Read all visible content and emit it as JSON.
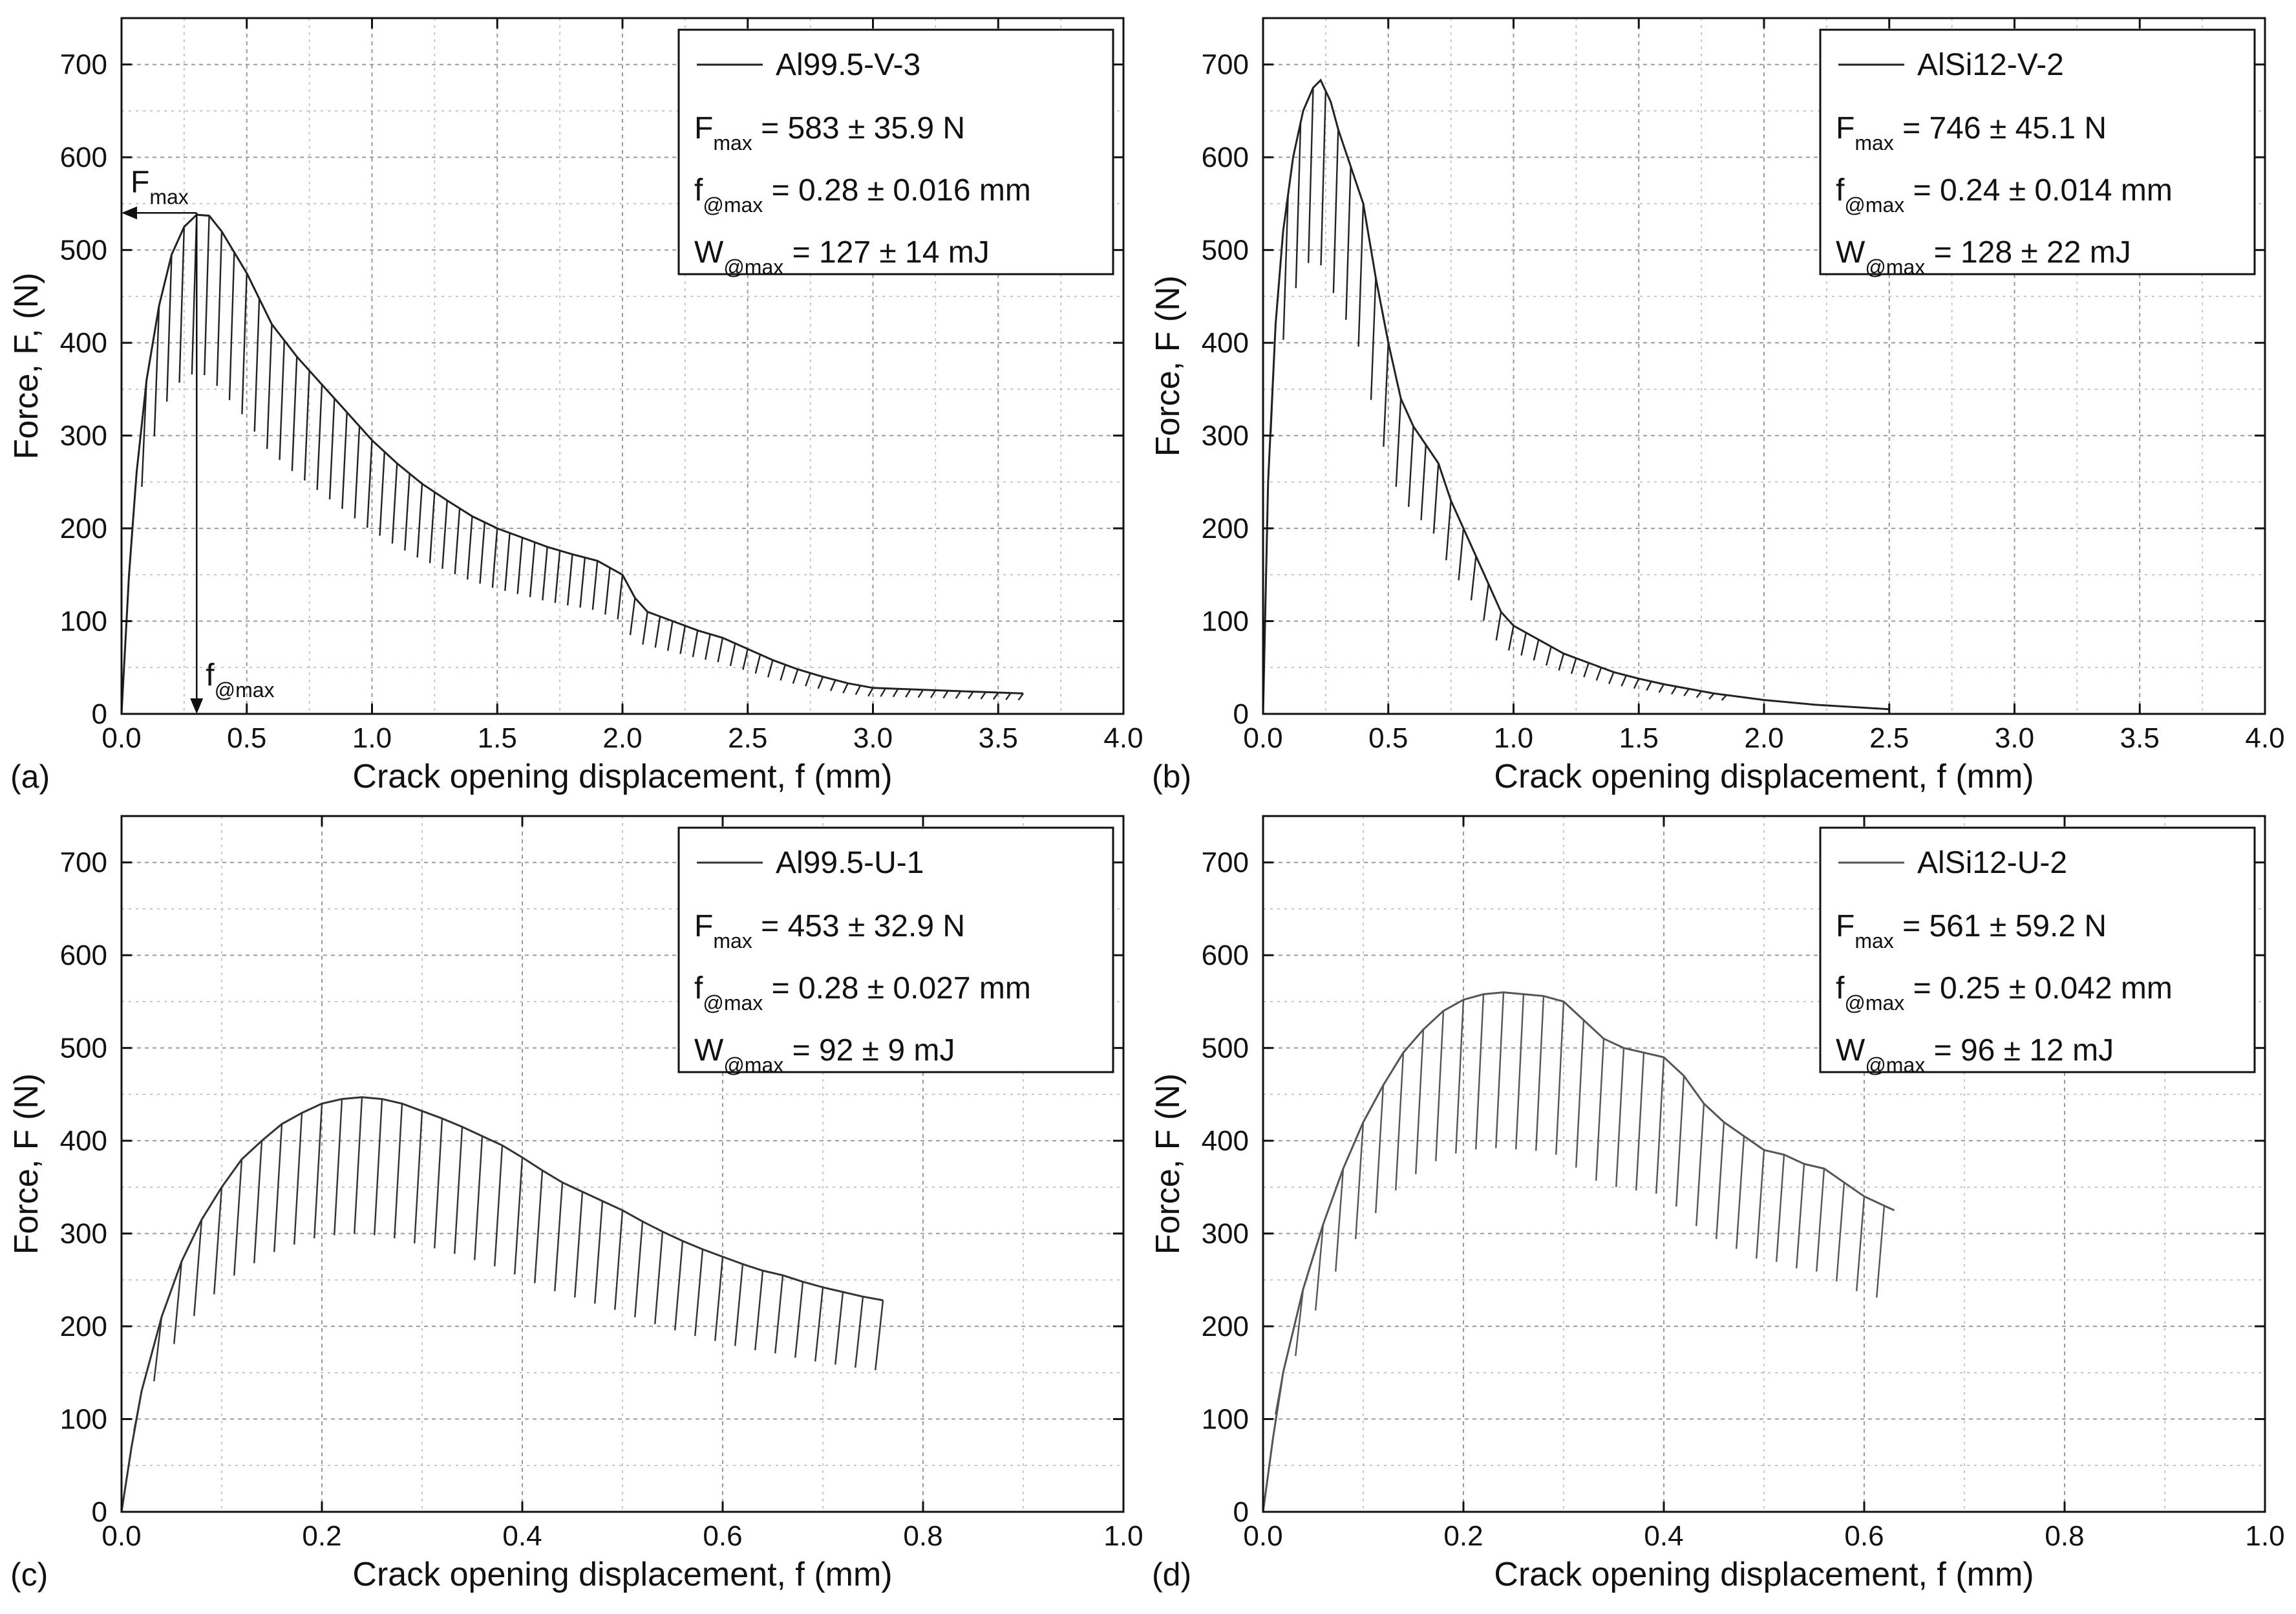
{
  "figure": {
    "panel_count": 4
  },
  "chart_data": [
    {
      "panel_label": "(a)",
      "type": "line",
      "xlabel": "Crack opening displacement, f (mm)",
      "ylabel": "Force, F, (N)",
      "xlim": [
        0,
        4.0
      ],
      "ylim": [
        0,
        750
      ],
      "xticks": [
        "0.0",
        "0.5",
        "1.0",
        "1.5",
        "2.0",
        "2.5",
        "3.0",
        "3.5",
        "4.0"
      ],
      "xtick_values": [
        0,
        0.5,
        1,
        1.5,
        2,
        2.5,
        3,
        3.5,
        4
      ],
      "yticks": [
        "0",
        "100",
        "200",
        "300",
        "400",
        "500",
        "600",
        "700"
      ],
      "ytick_values": [
        0,
        100,
        200,
        300,
        400,
        500,
        600,
        700
      ],
      "grid": true,
      "legend": {
        "location": "top-right",
        "series_name": "Al99.5-V-3",
        "rows": [
          {
            "main": "F",
            "sub": "max",
            "rest": " = 583 ± 35.9 N"
          },
          {
            "main": "f",
            "sub": "@max",
            "rest": " = 0.28 ± 0.016 mm"
          },
          {
            "main": "W",
            "sub": "@max",
            "rest": " = 127 ± 14 mJ"
          }
        ]
      },
      "annotations": {
        "peak_arrow": {
          "main": "F",
          "sub": "max"
        },
        "disp_arrow": {
          "main": "f",
          "sub": "@max"
        },
        "peak_point": [
          0.3,
          540
        ]
      },
      "series": [
        {
          "name": "Al99.5-V-3",
          "color": "#222222",
          "envelope": {
            "x": [
              0,
              0.03,
              0.06,
              0.1,
              0.15,
              0.2,
              0.25,
              0.3,
              0.35,
              0.4,
              0.5,
              0.6,
              0.7,
              0.8,
              0.9,
              1.0,
              1.1,
              1.2,
              1.3,
              1.4,
              1.5,
              1.6,
              1.7,
              1.8,
              1.9,
              2.0,
              2.05,
              2.1,
              2.2,
              2.3,
              2.4,
              2.5,
              2.6,
              2.7,
              2.8,
              2.9,
              3.0,
              3.2,
              3.4,
              3.6
            ],
            "y": [
              0,
              150,
              260,
              360,
              440,
              495,
              525,
              538,
              537,
              520,
              475,
              420,
              385,
              355,
              325,
              295,
              270,
              248,
              230,
              213,
              200,
              190,
              180,
              172,
              165,
              150,
              125,
              110,
              100,
              90,
              82,
              70,
              58,
              48,
              40,
              33,
              28,
              26,
              24,
              22
            ]
          },
          "unloading_step": 0.05,
          "unloading_depth": 0.32
        }
      ]
    },
    {
      "panel_label": "(b)",
      "type": "line",
      "xlabel": "Crack opening displacement, f (mm)",
      "ylabel": "Force, F (N)",
      "xlim": [
        0,
        4.0
      ],
      "ylim": [
        0,
        750
      ],
      "xticks": [
        "0.0",
        "0.5",
        "1.0",
        "1.5",
        "2.0",
        "2.5",
        "3.0",
        "3.5",
        "4.0"
      ],
      "xtick_values": [
        0,
        0.5,
        1,
        1.5,
        2,
        2.5,
        3,
        3.5,
        4
      ],
      "yticks": [
        "0",
        "100",
        "200",
        "300",
        "400",
        "500",
        "600",
        "700"
      ],
      "ytick_values": [
        0,
        100,
        200,
        300,
        400,
        500,
        600,
        700
      ],
      "grid": true,
      "legend": {
        "location": "top-right",
        "series_name": "AlSi12-V-2",
        "rows": [
          {
            "main": "F",
            "sub": "max",
            "rest": " = 746 ± 45.1 N"
          },
          {
            "main": "f",
            "sub": "@max",
            "rest": " = 0.24 ± 0.014 mm"
          },
          {
            "main": "W",
            "sub": "@max",
            "rest": " = 128 ± 22 mJ"
          }
        ]
      },
      "series": [
        {
          "name": "AlSi12-V-2",
          "color": "#222222",
          "envelope": {
            "x": [
              0,
              0.02,
              0.05,
              0.08,
              0.12,
              0.16,
              0.2,
              0.23,
              0.27,
              0.3,
              0.35,
              0.4,
              0.45,
              0.5,
              0.55,
              0.6,
              0.65,
              0.7,
              0.75,
              0.8,
              0.85,
              0.9,
              0.95,
              1.0,
              1.1,
              1.2,
              1.3,
              1.4,
              1.5,
              1.6,
              1.8,
              2.0,
              2.2,
              2.5
            ],
            "y": [
              0,
              250,
              420,
              520,
              600,
              650,
              675,
              683,
              660,
              630,
              590,
              550,
              470,
              400,
              340,
              310,
              290,
              270,
              230,
              200,
              170,
              140,
              110,
              95,
              80,
              65,
              55,
              45,
              38,
              32,
              22,
              15,
              10,
              5
            ]
          },
          "unloading_step": 0.05,
          "unloading_depth": 0.28
        }
      ]
    },
    {
      "panel_label": "(c)",
      "type": "line",
      "xlabel": "Crack opening displacement, f (mm)",
      "ylabel": "Force, F (N)",
      "xlim": [
        0,
        1.0
      ],
      "ylim": [
        0,
        750
      ],
      "xticks": [
        "0.0",
        "0.2",
        "0.4",
        "0.6",
        "0.8",
        "1.0"
      ],
      "xtick_values": [
        0,
        0.2,
        0.4,
        0.6,
        0.8,
        1.0
      ],
      "yticks": [
        "0",
        "100",
        "200",
        "300",
        "400",
        "500",
        "600",
        "700"
      ],
      "ytick_values": [
        0,
        100,
        200,
        300,
        400,
        500,
        600,
        700
      ],
      "grid": true,
      "legend": {
        "location": "top-right",
        "series_name": "Al99.5-U-1",
        "rows": [
          {
            "main": "F",
            "sub": "max",
            "rest": " = 453 ± 32.9 N"
          },
          {
            "main": "f",
            "sub": "@max",
            "rest": " = 0.28 ± 0.027 mm"
          },
          {
            "main": "W",
            "sub": "@max",
            "rest": " = 92 ± 9 mJ"
          }
        ]
      },
      "series": [
        {
          "name": "Al99.5-U-1",
          "color": "#333333",
          "envelope": {
            "x": [
              0,
              0.01,
              0.02,
              0.04,
              0.06,
              0.08,
              0.1,
              0.12,
              0.14,
              0.16,
              0.18,
              0.2,
              0.22,
              0.24,
              0.26,
              0.28,
              0.3,
              0.32,
              0.34,
              0.36,
              0.38,
              0.4,
              0.42,
              0.44,
              0.46,
              0.48,
              0.5,
              0.52,
              0.54,
              0.56,
              0.58,
              0.6,
              0.62,
              0.64,
              0.66,
              0.68,
              0.7,
              0.72,
              0.74,
              0.76
            ],
            "y": [
              0,
              70,
              130,
              210,
              270,
              315,
              350,
              380,
              400,
              418,
              430,
              440,
              445,
              447,
              445,
              440,
              432,
              424,
              415,
              405,
              395,
              382,
              368,
              355,
              345,
              335,
              325,
              313,
              302,
              292,
              283,
              275,
              267,
              260,
              255,
              248,
              242,
              237,
              232,
              228
            ]
          },
          "unloading_step": 0.02,
          "unloading_depth": 0.33
        }
      ]
    },
    {
      "panel_label": "(d)",
      "type": "line",
      "xlabel": "Crack opening displacement, f (mm)",
      "ylabel": "Force, F (N)",
      "xlim": [
        0,
        1.0
      ],
      "ylim": [
        0,
        750
      ],
      "xticks": [
        "0.0",
        "0.2",
        "0.4",
        "0.6",
        "0.8",
        "1.0"
      ],
      "xtick_values": [
        0,
        0.2,
        0.4,
        0.6,
        0.8,
        1.0
      ],
      "yticks": [
        "0",
        "100",
        "200",
        "300",
        "400",
        "500",
        "600",
        "700"
      ],
      "ytick_values": [
        0,
        100,
        200,
        300,
        400,
        500,
        600,
        700
      ],
      "grid": true,
      "legend": {
        "location": "top-right",
        "series_name": "AlSi12-U-2",
        "rows": [
          {
            "main": "F",
            "sub": "max",
            "rest": " = 561 ± 59.2 N"
          },
          {
            "main": "f",
            "sub": "@max",
            "rest": " = 0.25 ± 0.042 mm"
          },
          {
            "main": "W",
            "sub": "@max",
            "rest": " = 96 ± 12 mJ"
          }
        ]
      },
      "series": [
        {
          "name": "AlSi12-U-2",
          "color": "#555555",
          "envelope": {
            "x": [
              0,
              0.01,
              0.02,
              0.04,
              0.06,
              0.08,
              0.1,
              0.12,
              0.14,
              0.16,
              0.18,
              0.2,
              0.22,
              0.24,
              0.26,
              0.28,
              0.3,
              0.32,
              0.34,
              0.36,
              0.38,
              0.4,
              0.42,
              0.44,
              0.46,
              0.48,
              0.5,
              0.52,
              0.54,
              0.56,
              0.58,
              0.6,
              0.62,
              0.63
            ],
            "y": [
              0,
              80,
              150,
              240,
              310,
              370,
              420,
              460,
              495,
              520,
              540,
              552,
              558,
              560,
              558,
              556,
              550,
              530,
              510,
              500,
              495,
              490,
              470,
              440,
              420,
              405,
              390,
              385,
              375,
              370,
              355,
              340,
              330,
              325
            ]
          },
          "unloading_step": 0.02,
          "unloading_depth": 0.3
        }
      ]
    }
  ]
}
